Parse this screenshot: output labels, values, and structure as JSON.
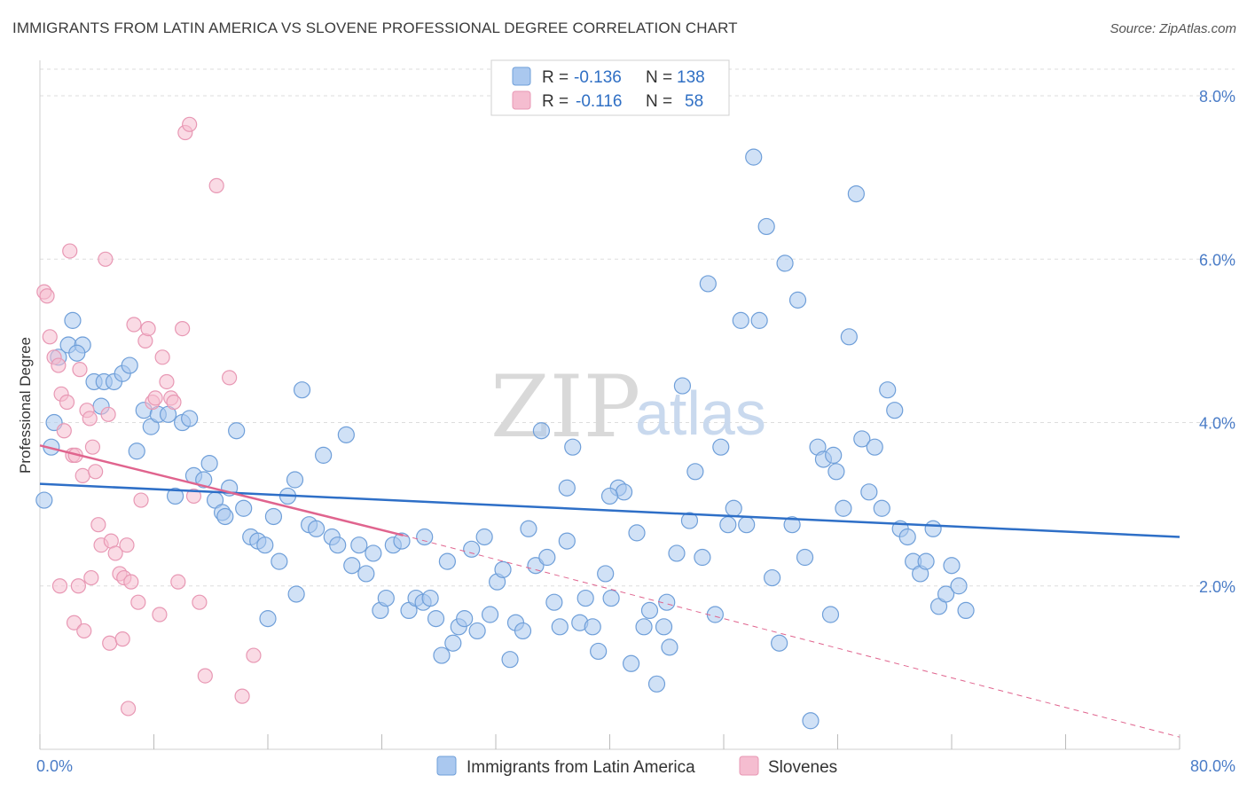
{
  "title": "IMMIGRANTS FROM LATIN AMERICA VS SLOVENE PROFESSIONAL DEGREE CORRELATION CHART",
  "source": "Source: ZipAtlas.com",
  "watermark": {
    "zip": "ZIP",
    "atlas": "atlas"
  },
  "colors": {
    "blue_fill": "#aac8ef",
    "blue_stroke": "#6f9fd9",
    "blue_line": "#2e6fc7",
    "pink_fill": "#f5bdd0",
    "pink_stroke": "#e898b4",
    "pink_line": "#e0648e",
    "grid": "#dddddd"
  },
  "legend": {
    "rows": [
      {
        "r_label": "R = ",
        "r_value": "-0.136",
        "n_label": "N = ",
        "n_value": "138"
      },
      {
        "r_label": "R = ",
        "r_value": "-0.116",
        "n_label": "N = ",
        "n_value": "58"
      }
    ]
  },
  "bottom_legend": [
    "Immigrants from Latin America",
    "Slovenes"
  ],
  "chart_data": {
    "type": "scatter",
    "title": "IMMIGRANTS FROM LATIN AMERICA VS SLOVENE PROFESSIONAL DEGREE CORRELATION CHART",
    "xlabel": "",
    "ylabel": "Professional Degree",
    "xlim": [
      0,
      80
    ],
    "ylim": [
      0,
      8.5
    ],
    "x_tick_labels": [
      "0.0%",
      "80.0%"
    ],
    "y_ticks": [
      2,
      4,
      6,
      8
    ],
    "y_tick_labels": [
      "2.0%",
      "4.0%",
      "6.0%",
      "8.0%"
    ],
    "grid": true,
    "legend_position": "top-center",
    "series": [
      {
        "name": "Immigrants from Latin America",
        "r": -0.136,
        "n": 138,
        "trend": {
          "x": [
            0,
            80
          ],
          "y": [
            3.25,
            2.6
          ]
        },
        "points": [
          [
            0.3,
            3.05
          ],
          [
            1.0,
            4.0
          ],
          [
            1.3,
            4.8
          ],
          [
            2.0,
            4.95
          ],
          [
            2.3,
            5.25
          ],
          [
            3.0,
            4.95
          ],
          [
            3.8,
            4.5
          ],
          [
            4.3,
            4.2
          ],
          [
            4.5,
            4.5
          ],
          [
            5.2,
            4.5
          ],
          [
            5.8,
            4.6
          ],
          [
            6.3,
            4.7
          ],
          [
            6.8,
            3.65
          ],
          [
            7.3,
            4.15
          ],
          [
            7.8,
            3.95
          ],
          [
            8.3,
            4.1
          ],
          [
            9.0,
            4.1
          ],
          [
            9.5,
            3.1
          ],
          [
            10.0,
            4.0
          ],
          [
            10.5,
            4.05
          ],
          [
            10.8,
            3.35
          ],
          [
            11.5,
            3.3
          ],
          [
            11.9,
            3.5
          ],
          [
            12.3,
            3.05
          ],
          [
            12.8,
            2.9
          ],
          [
            13.3,
            3.2
          ],
          [
            13.8,
            3.9
          ],
          [
            14.3,
            2.95
          ],
          [
            14.8,
            2.6
          ],
          [
            15.3,
            2.55
          ],
          [
            15.8,
            2.5
          ],
          [
            16.4,
            2.85
          ],
          [
            16.8,
            2.3
          ],
          [
            17.4,
            3.1
          ],
          [
            17.9,
            3.3
          ],
          [
            18.4,
            4.4
          ],
          [
            18.9,
            2.75
          ],
          [
            19.4,
            2.7
          ],
          [
            19.9,
            3.6
          ],
          [
            20.5,
            2.6
          ],
          [
            20.9,
            2.5
          ],
          [
            21.5,
            3.85
          ],
          [
            21.9,
            2.25
          ],
          [
            22.4,
            2.5
          ],
          [
            22.9,
            2.15
          ],
          [
            23.4,
            2.4
          ],
          [
            23.9,
            1.7
          ],
          [
            24.3,
            1.85
          ],
          [
            24.8,
            2.5
          ],
          [
            25.4,
            2.55
          ],
          [
            25.9,
            1.7
          ],
          [
            26.4,
            1.85
          ],
          [
            26.9,
            1.8
          ],
          [
            27.4,
            1.85
          ],
          [
            27.8,
            1.6
          ],
          [
            28.2,
            1.15
          ],
          [
            28.6,
            2.3
          ],
          [
            29.0,
            1.3
          ],
          [
            29.4,
            1.5
          ],
          [
            29.8,
            1.6
          ],
          [
            30.3,
            2.45
          ],
          [
            30.7,
            1.45
          ],
          [
            31.2,
            2.6
          ],
          [
            31.6,
            1.65
          ],
          [
            32.1,
            2.05
          ],
          [
            32.5,
            2.2
          ],
          [
            33.0,
            1.1
          ],
          [
            33.4,
            1.55
          ],
          [
            33.9,
            1.45
          ],
          [
            34.3,
            2.7
          ],
          [
            34.8,
            2.25
          ],
          [
            35.2,
            3.9
          ],
          [
            35.6,
            2.35
          ],
          [
            36.1,
            1.8
          ],
          [
            36.5,
            1.5
          ],
          [
            37.0,
            2.55
          ],
          [
            37.4,
            3.7
          ],
          [
            37.9,
            1.55
          ],
          [
            38.3,
            1.85
          ],
          [
            38.8,
            1.5
          ],
          [
            39.2,
            1.2
          ],
          [
            39.7,
            2.15
          ],
          [
            40.1,
            1.85
          ],
          [
            40.6,
            3.2
          ],
          [
            41.0,
            3.15
          ],
          [
            41.5,
            1.05
          ],
          [
            41.9,
            2.65
          ],
          [
            42.4,
            1.5
          ],
          [
            42.8,
            1.7
          ],
          [
            43.3,
            0.8
          ],
          [
            43.8,
            1.5
          ],
          [
            44.2,
            1.25
          ],
          [
            44.7,
            2.4
          ],
          [
            45.1,
            4.45
          ],
          [
            45.6,
            2.8
          ],
          [
            46.0,
            3.4
          ],
          [
            46.5,
            2.35
          ],
          [
            46.9,
            5.7
          ],
          [
            47.4,
            1.65
          ],
          [
            47.8,
            3.7
          ],
          [
            48.3,
            2.75
          ],
          [
            48.7,
            2.95
          ],
          [
            49.2,
            5.25
          ],
          [
            49.6,
            2.75
          ],
          [
            50.1,
            7.25
          ],
          [
            50.5,
            5.25
          ],
          [
            51.0,
            6.4
          ],
          [
            51.4,
            2.1
          ],
          [
            51.9,
            1.3
          ],
          [
            52.3,
            5.95
          ],
          [
            52.8,
            2.75
          ],
          [
            53.2,
            5.5
          ],
          [
            53.7,
            2.35
          ],
          [
            54.1,
            0.35
          ],
          [
            54.6,
            3.7
          ],
          [
            55.0,
            3.55
          ],
          [
            55.5,
            1.65
          ],
          [
            55.9,
            3.4
          ],
          [
            56.4,
            2.95
          ],
          [
            56.8,
            5.05
          ],
          [
            57.3,
            6.8
          ],
          [
            57.7,
            3.8
          ],
          [
            58.2,
            3.15
          ],
          [
            58.6,
            3.7
          ],
          [
            59.1,
            2.95
          ],
          [
            59.5,
            4.4
          ],
          [
            60.0,
            4.15
          ],
          [
            60.4,
            2.7
          ],
          [
            60.9,
            2.6
          ],
          [
            61.3,
            2.3
          ],
          [
            61.8,
            2.15
          ],
          [
            62.2,
            2.3
          ],
          [
            62.7,
            2.7
          ],
          [
            63.1,
            1.75
          ],
          [
            63.6,
            1.9
          ],
          [
            64.0,
            2.25
          ],
          [
            64.5,
            2.0
          ],
          [
            65.0,
            1.7
          ],
          [
            16.0,
            1.6
          ],
          [
            18.0,
            1.9
          ],
          [
            0.8,
            3.7
          ],
          [
            2.6,
            4.85
          ],
          [
            55.7,
            3.6
          ],
          [
            40.0,
            3.1
          ],
          [
            37.0,
            3.2
          ],
          [
            44.0,
            1.8
          ],
          [
            27.0,
            2.6
          ],
          [
            13.0,
            2.85
          ]
        ]
      },
      {
        "name": "Slovenes",
        "r": -0.116,
        "n": 58,
        "trend": {
          "x": [
            0,
            25.5
          ],
          "y": [
            3.72,
            2.62
          ]
        },
        "trend_extension": {
          "x": [
            25.5,
            80
          ],
          "y": [
            2.62,
            0.15
          ]
        },
        "points": [
          [
            0.3,
            5.6
          ],
          [
            0.5,
            5.55
          ],
          [
            0.7,
            5.05
          ],
          [
            1.0,
            4.8
          ],
          [
            1.3,
            4.7
          ],
          [
            1.5,
            4.35
          ],
          [
            1.7,
            3.9
          ],
          [
            1.9,
            4.25
          ],
          [
            2.1,
            6.1
          ],
          [
            2.3,
            3.6
          ],
          [
            2.5,
            3.6
          ],
          [
            2.8,
            4.65
          ],
          [
            3.0,
            3.35
          ],
          [
            3.3,
            4.15
          ],
          [
            3.5,
            4.05
          ],
          [
            3.7,
            3.7
          ],
          [
            3.9,
            3.4
          ],
          [
            4.1,
            2.75
          ],
          [
            4.3,
            2.5
          ],
          [
            4.6,
            6.0
          ],
          [
            4.8,
            4.1
          ],
          [
            5.0,
            2.55
          ],
          [
            5.3,
            2.4
          ],
          [
            5.6,
            2.15
          ],
          [
            5.9,
            2.1
          ],
          [
            6.1,
            2.5
          ],
          [
            6.4,
            2.05
          ],
          [
            6.6,
            5.2
          ],
          [
            6.9,
            1.8
          ],
          [
            7.1,
            3.05
          ],
          [
            7.4,
            5.0
          ],
          [
            7.6,
            5.15
          ],
          [
            7.9,
            4.25
          ],
          [
            8.1,
            4.3
          ],
          [
            8.4,
            1.65
          ],
          [
            8.6,
            4.8
          ],
          [
            8.9,
            4.5
          ],
          [
            9.2,
            4.3
          ],
          [
            9.4,
            4.25
          ],
          [
            9.7,
            2.05
          ],
          [
            10.0,
            5.15
          ],
          [
            10.2,
            7.55
          ],
          [
            10.5,
            7.65
          ],
          [
            10.8,
            3.1
          ],
          [
            11.2,
            1.8
          ],
          [
            11.6,
            0.9
          ],
          [
            12.4,
            6.9
          ],
          [
            13.3,
            4.55
          ],
          [
            14.2,
            0.65
          ],
          [
            15.0,
            1.15
          ],
          [
            2.4,
            1.55
          ],
          [
            3.1,
            1.45
          ],
          [
            3.6,
            2.1
          ],
          [
            4.9,
            1.3
          ],
          [
            5.8,
            1.35
          ],
          [
            6.2,
            0.5
          ],
          [
            1.4,
            2.0
          ],
          [
            2.7,
            2.0
          ]
        ]
      }
    ]
  }
}
